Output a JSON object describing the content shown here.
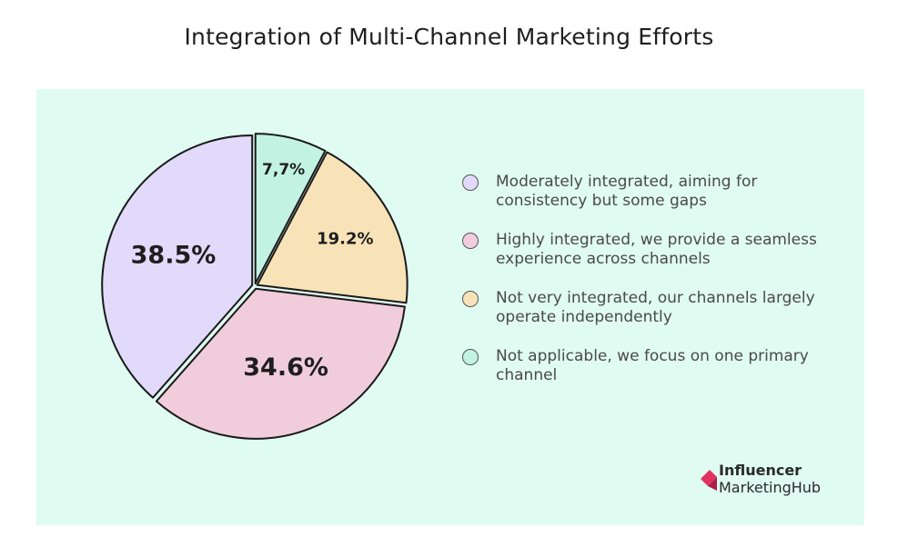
{
  "chart_data": {
    "type": "pie",
    "title": "Integration of Multi-Channel Marketing Efforts",
    "slices": [
      {
        "label": "Not applicable, we focus on one primary channel",
        "value": 7.7,
        "display": "7,7%",
        "color": "#c2f2e2"
      },
      {
        "label": "Not very integrated, our channels largely operate independently",
        "value": 19.2,
        "display": "19.2%",
        "color": "#f8e3b8"
      },
      {
        "label": "Highly integrated, we provide a seamless experience across channels",
        "value": 34.6,
        "display": "34.6%",
        "color": "#f1cddb"
      },
      {
        "label": "Moderately integrated, aiming for consistency but some gaps",
        "value": 38.5,
        "display": "38.5%",
        "color": "#e2dafa"
      }
    ],
    "legend": [
      {
        "label": "Moderately integrated, aiming for consistency but some gaps",
        "color": "#e2dafa"
      },
      {
        "label": "Highly integrated, we provide a seamless experience across channels",
        "color": "#f1cddb"
      },
      {
        "label": "Not very integrated, our channels largely operate independently",
        "color": "#f8e3b8"
      },
      {
        "label": "Not applicable, we focus on one primary channel",
        "color": "#c2f2e2"
      }
    ],
    "legend_position": "right",
    "start_angle": "12 o'clock, clockwise",
    "exploded": true
  },
  "colors": {
    "background": "#e0fbf2",
    "stroke": "#1a1a1a",
    "logo_accent": "#e0335f"
  },
  "logo": {
    "line1": "Influencer",
    "line2a": "Marketing",
    "line2b": "Hub"
  }
}
